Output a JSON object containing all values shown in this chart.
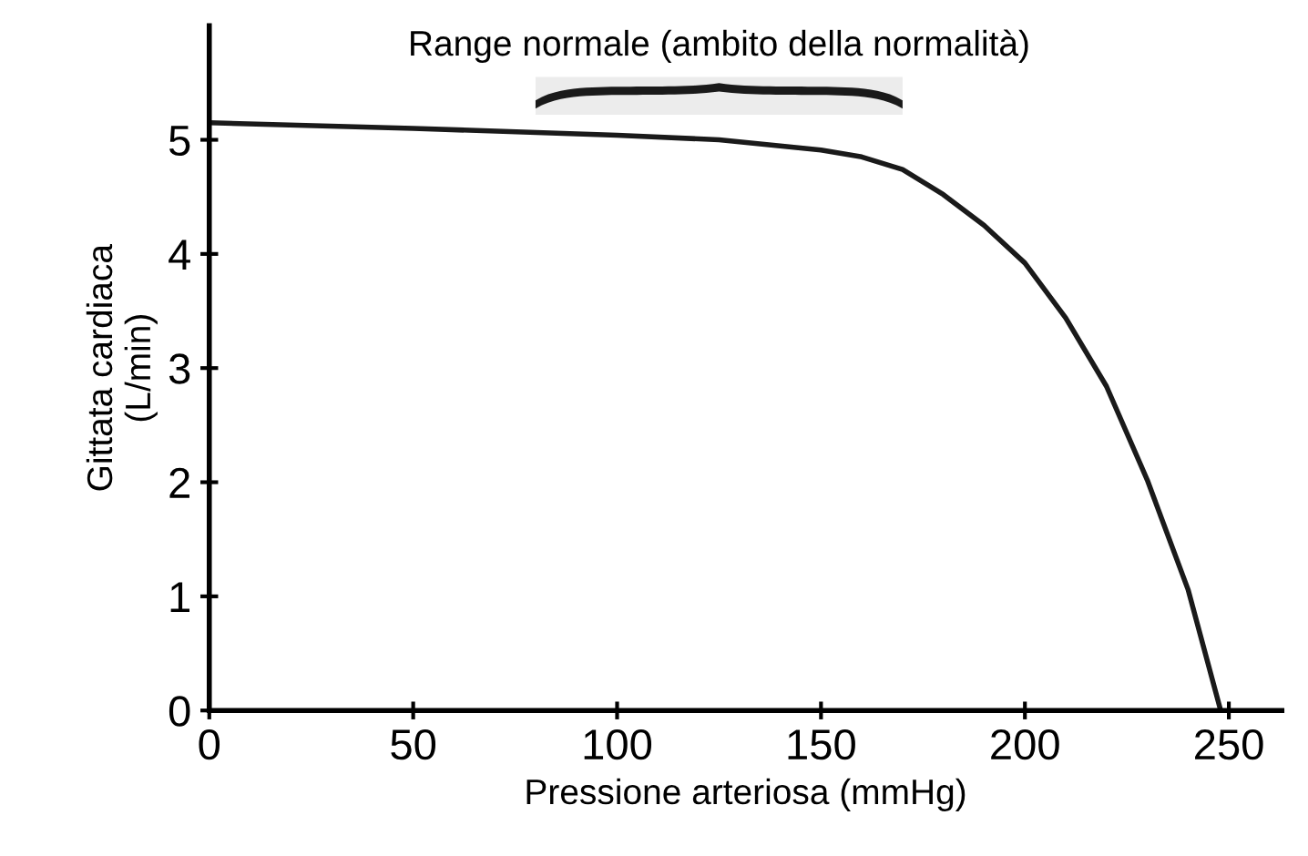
{
  "chart_data": {
    "type": "line",
    "xlabel": "Pressione arteriosa (mmHg)",
    "ylabel": "Gittata cardiaca\n(L/min)",
    "x": [
      0,
      50,
      100,
      125,
      150,
      160,
      170,
      180,
      190,
      200,
      210,
      220,
      230,
      240,
      248
    ],
    "series": [
      {
        "color": "#1a1a1a",
        "values": [
          5.15,
          5.1,
          5.04,
          5.0,
          4.91,
          4.85,
          4.74,
          4.52,
          4.25,
          3.92,
          3.44,
          2.84,
          2.02,
          1.06,
          0
        ]
      }
    ],
    "xlim": [
      0,
      263
    ],
    "ylim": [
      0,
      6
    ],
    "xticks": [
      0,
      50,
      100,
      150,
      200,
      250
    ],
    "yticks": [
      0,
      1,
      2,
      3,
      4,
      5
    ],
    "bands": [
      {
        "axis": "x",
        "from": 80,
        "to": 170,
        "label": "Range normale (ambito della normalità)",
        "color": "#ececec"
      }
    ],
    "grid": false,
    "legend": false,
    "marker": "none",
    "line_style": "solid"
  }
}
